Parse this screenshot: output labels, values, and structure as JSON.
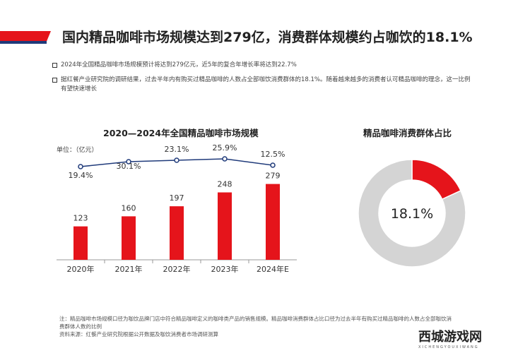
{
  "header": {
    "title": "国内精品咖啡市场规模达到279亿，消费群体规模约占咖饮的18.1%"
  },
  "bullets": [
    "2024年全国精品咖啡市场规模预计将达到279亿元，近5年的复合年增长率将达到22.7%",
    "据红餐产业研究院的调研结果，过去半年内有购买过精品咖啡的人数占全部咖饮消费群体的18.1%。随着越来越多的消费者认可精品咖啡的理念，这一比例有望快速增长"
  ],
  "notes": [
    "注：精品咖啡市场规模口径为咖饮品牌门店中符合精品咖啡定义的咖啡类产品的销售规模。精品咖啡消费群体占比口径为过去半年有购买过精品咖啡的人数占全部咖饮消费群体人数的比例",
    "资料来源：红餐产业研究院根据公开数据及咖饮消费者市场调研测算"
  ],
  "logo": {
    "name": "西城游戏网",
    "sub": "XICHENGYOUXIWANG"
  },
  "colors": {
    "accent": "#e5141b",
    "line": "#1f3a7a",
    "donut_rest": "#d4d4d4"
  },
  "chart_data": [
    {
      "type": "bar",
      "title": "2020—2024年全国精品咖啡市场规模",
      "unit": "单位：（亿元）",
      "categories": [
        "2020年",
        "2021年",
        "2022年",
        "2023年",
        "2024年E"
      ],
      "values": [
        123,
        160,
        197,
        248,
        279
      ],
      "line_series": {
        "type": "line",
        "values": [
          19.4,
          30.1,
          23.1,
          25.9,
          12.5
        ],
        "labels": [
          "19.4%",
          "30.1%",
          "23.1%",
          "25.9%",
          "12.5%"
        ]
      }
    },
    {
      "type": "pie",
      "title": "精品咖啡消费群体占比",
      "values": [
        18.1,
        81.9
      ],
      "label": "18.1%"
    }
  ]
}
